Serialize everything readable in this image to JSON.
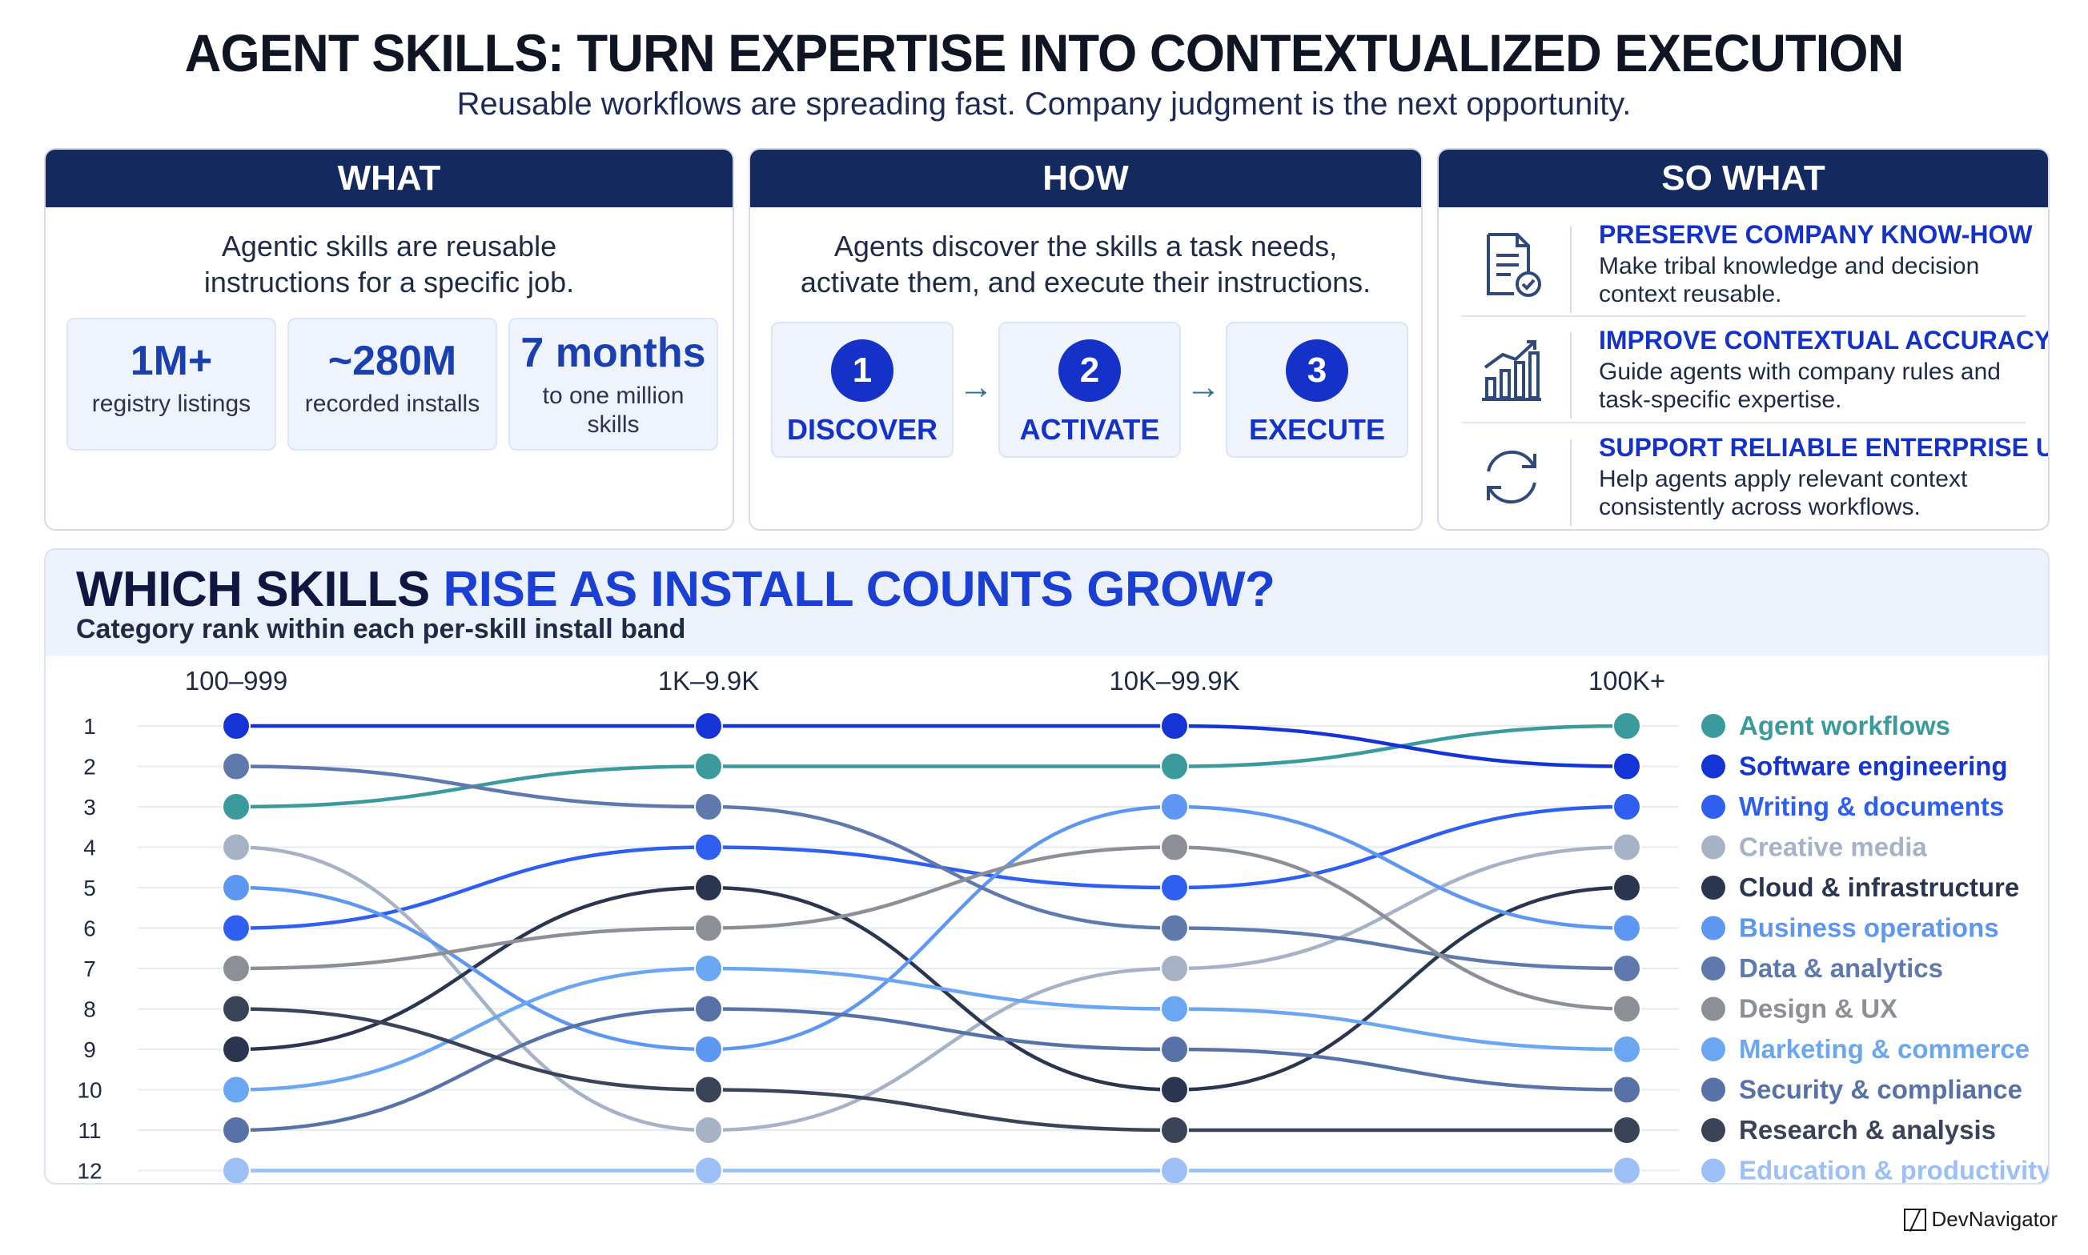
{
  "header": {
    "title": "AGENT SKILLS: TURN EXPERTISE INTO CONTEXTUALIZED EXECUTION",
    "subtitle": "Reusable workflows are spreading fast. Company judgment is the next opportunity."
  },
  "what": {
    "heading": "WHAT",
    "text": "Agentic skills are reusable instructions for a specific job.",
    "stats": [
      {
        "value": "1M+",
        "label": "registry listings"
      },
      {
        "value": "~280M",
        "label": "recorded installs"
      },
      {
        "value": "7 months",
        "label": "to one million skills"
      }
    ]
  },
  "how": {
    "heading": "HOW",
    "text": "Agents discover the skills a task needs, activate them, and execute their instructions.",
    "steps": [
      {
        "num": "1",
        "label": "DISCOVER"
      },
      {
        "num": "2",
        "label": "ACTIVATE"
      },
      {
        "num": "3",
        "label": "EXECUTE"
      }
    ],
    "arrow": "→"
  },
  "so_what": {
    "heading": "SO WHAT",
    "items": [
      {
        "icon": "document-check-icon",
        "title": "PRESERVE COMPANY KNOW-HOW",
        "desc": "Make tribal knowledge and decision context reusable."
      },
      {
        "icon": "growth-chart-icon",
        "title": "IMPROVE CONTEXTUAL ACCURACY",
        "desc": "Guide agents with company rules and task-specific expertise."
      },
      {
        "icon": "refresh-cycle-icon",
        "title": "SUPPORT RELIABLE ENTERPRISE USE",
        "desc": "Help agents apply relevant context consistently across workflows."
      }
    ]
  },
  "chart_section": {
    "title_part1": "WHICH SKILLS ",
    "title_part2": "RISE AS INSTALL COUNTS GROW?",
    "subtitle": "Category rank within each per-skill install band"
  },
  "chart_data": {
    "type": "line",
    "subtype": "bump",
    "categories": [
      "100–999",
      "1K–9.9K",
      "10K–99.9K",
      "100K+"
    ],
    "y_ticks": [
      "1",
      "2",
      "3",
      "4",
      "5",
      "6",
      "7",
      "8",
      "9",
      "10",
      "11",
      "12"
    ],
    "y_axis": "rank, 1 at top",
    "series": [
      {
        "name": "Agent workflows",
        "values": [
          3,
          2,
          2,
          1
        ],
        "color": "#3a9a9c"
      },
      {
        "name": "Software engineering",
        "values": [
          1,
          1,
          1,
          2
        ],
        "color": "#1434d6"
      },
      {
        "name": "Writing & documents",
        "values": [
          6,
          4,
          5,
          3
        ],
        "color": "#2f5ff0"
      },
      {
        "name": "Creative media",
        "values": [
          4,
          11,
          7,
          4
        ],
        "color": "#a6b2c6"
      },
      {
        "name": "Cloud & infrastructure",
        "values": [
          9,
          5,
          10,
          5
        ],
        "color": "#2a3650"
      },
      {
        "name": "Business operations",
        "values": [
          5,
          9,
          3,
          6
        ],
        "color": "#5d97f2"
      },
      {
        "name": "Data & analytics",
        "values": [
          2,
          3,
          6,
          7
        ],
        "color": "#5f79ad"
      },
      {
        "name": "Design & UX",
        "values": [
          7,
          6,
          4,
          8
        ],
        "color": "#8c8f96"
      },
      {
        "name": "Marketing & commerce",
        "values": [
          10,
          7,
          8,
          9
        ],
        "color": "#6aa6f2"
      },
      {
        "name": "Security & compliance",
        "values": [
          11,
          8,
          9,
          10
        ],
        "color": "#5872a8"
      },
      {
        "name": "Research & analysis",
        "values": [
          8,
          10,
          11,
          11
        ],
        "color": "#3a4458"
      },
      {
        "name": "Education & productivity",
        "values": [
          12,
          12,
          12,
          12
        ],
        "color": "#9cc0f5"
      }
    ],
    "legend_position": "right"
  },
  "footer": {
    "brand": "DevNavigator"
  }
}
